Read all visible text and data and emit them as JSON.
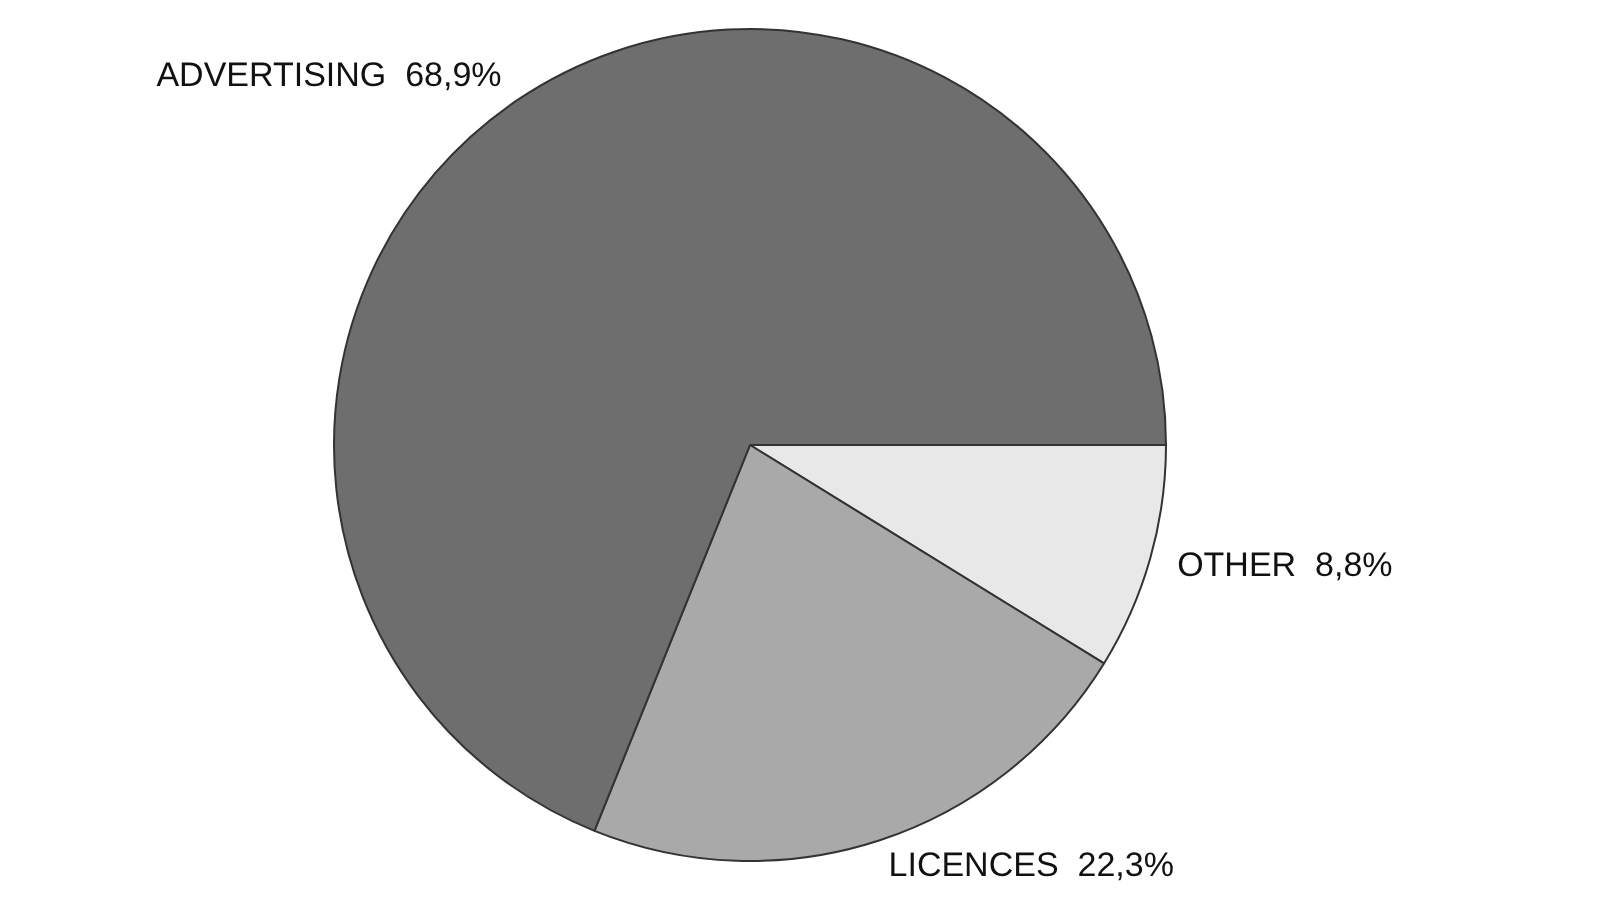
{
  "chart_data": {
    "type": "pie",
    "categories": [
      "OTHER",
      "LICENCES",
      "ADVERTISING"
    ],
    "values": [
      8.8,
      22.3,
      68.9
    ],
    "value_labels": [
      "8,8%",
      "22,3%",
      "68,9%"
    ],
    "colors": [
      "#e8e8e8",
      "#a9a9a9",
      "#6e6e6e"
    ],
    "legend": false
  }
}
